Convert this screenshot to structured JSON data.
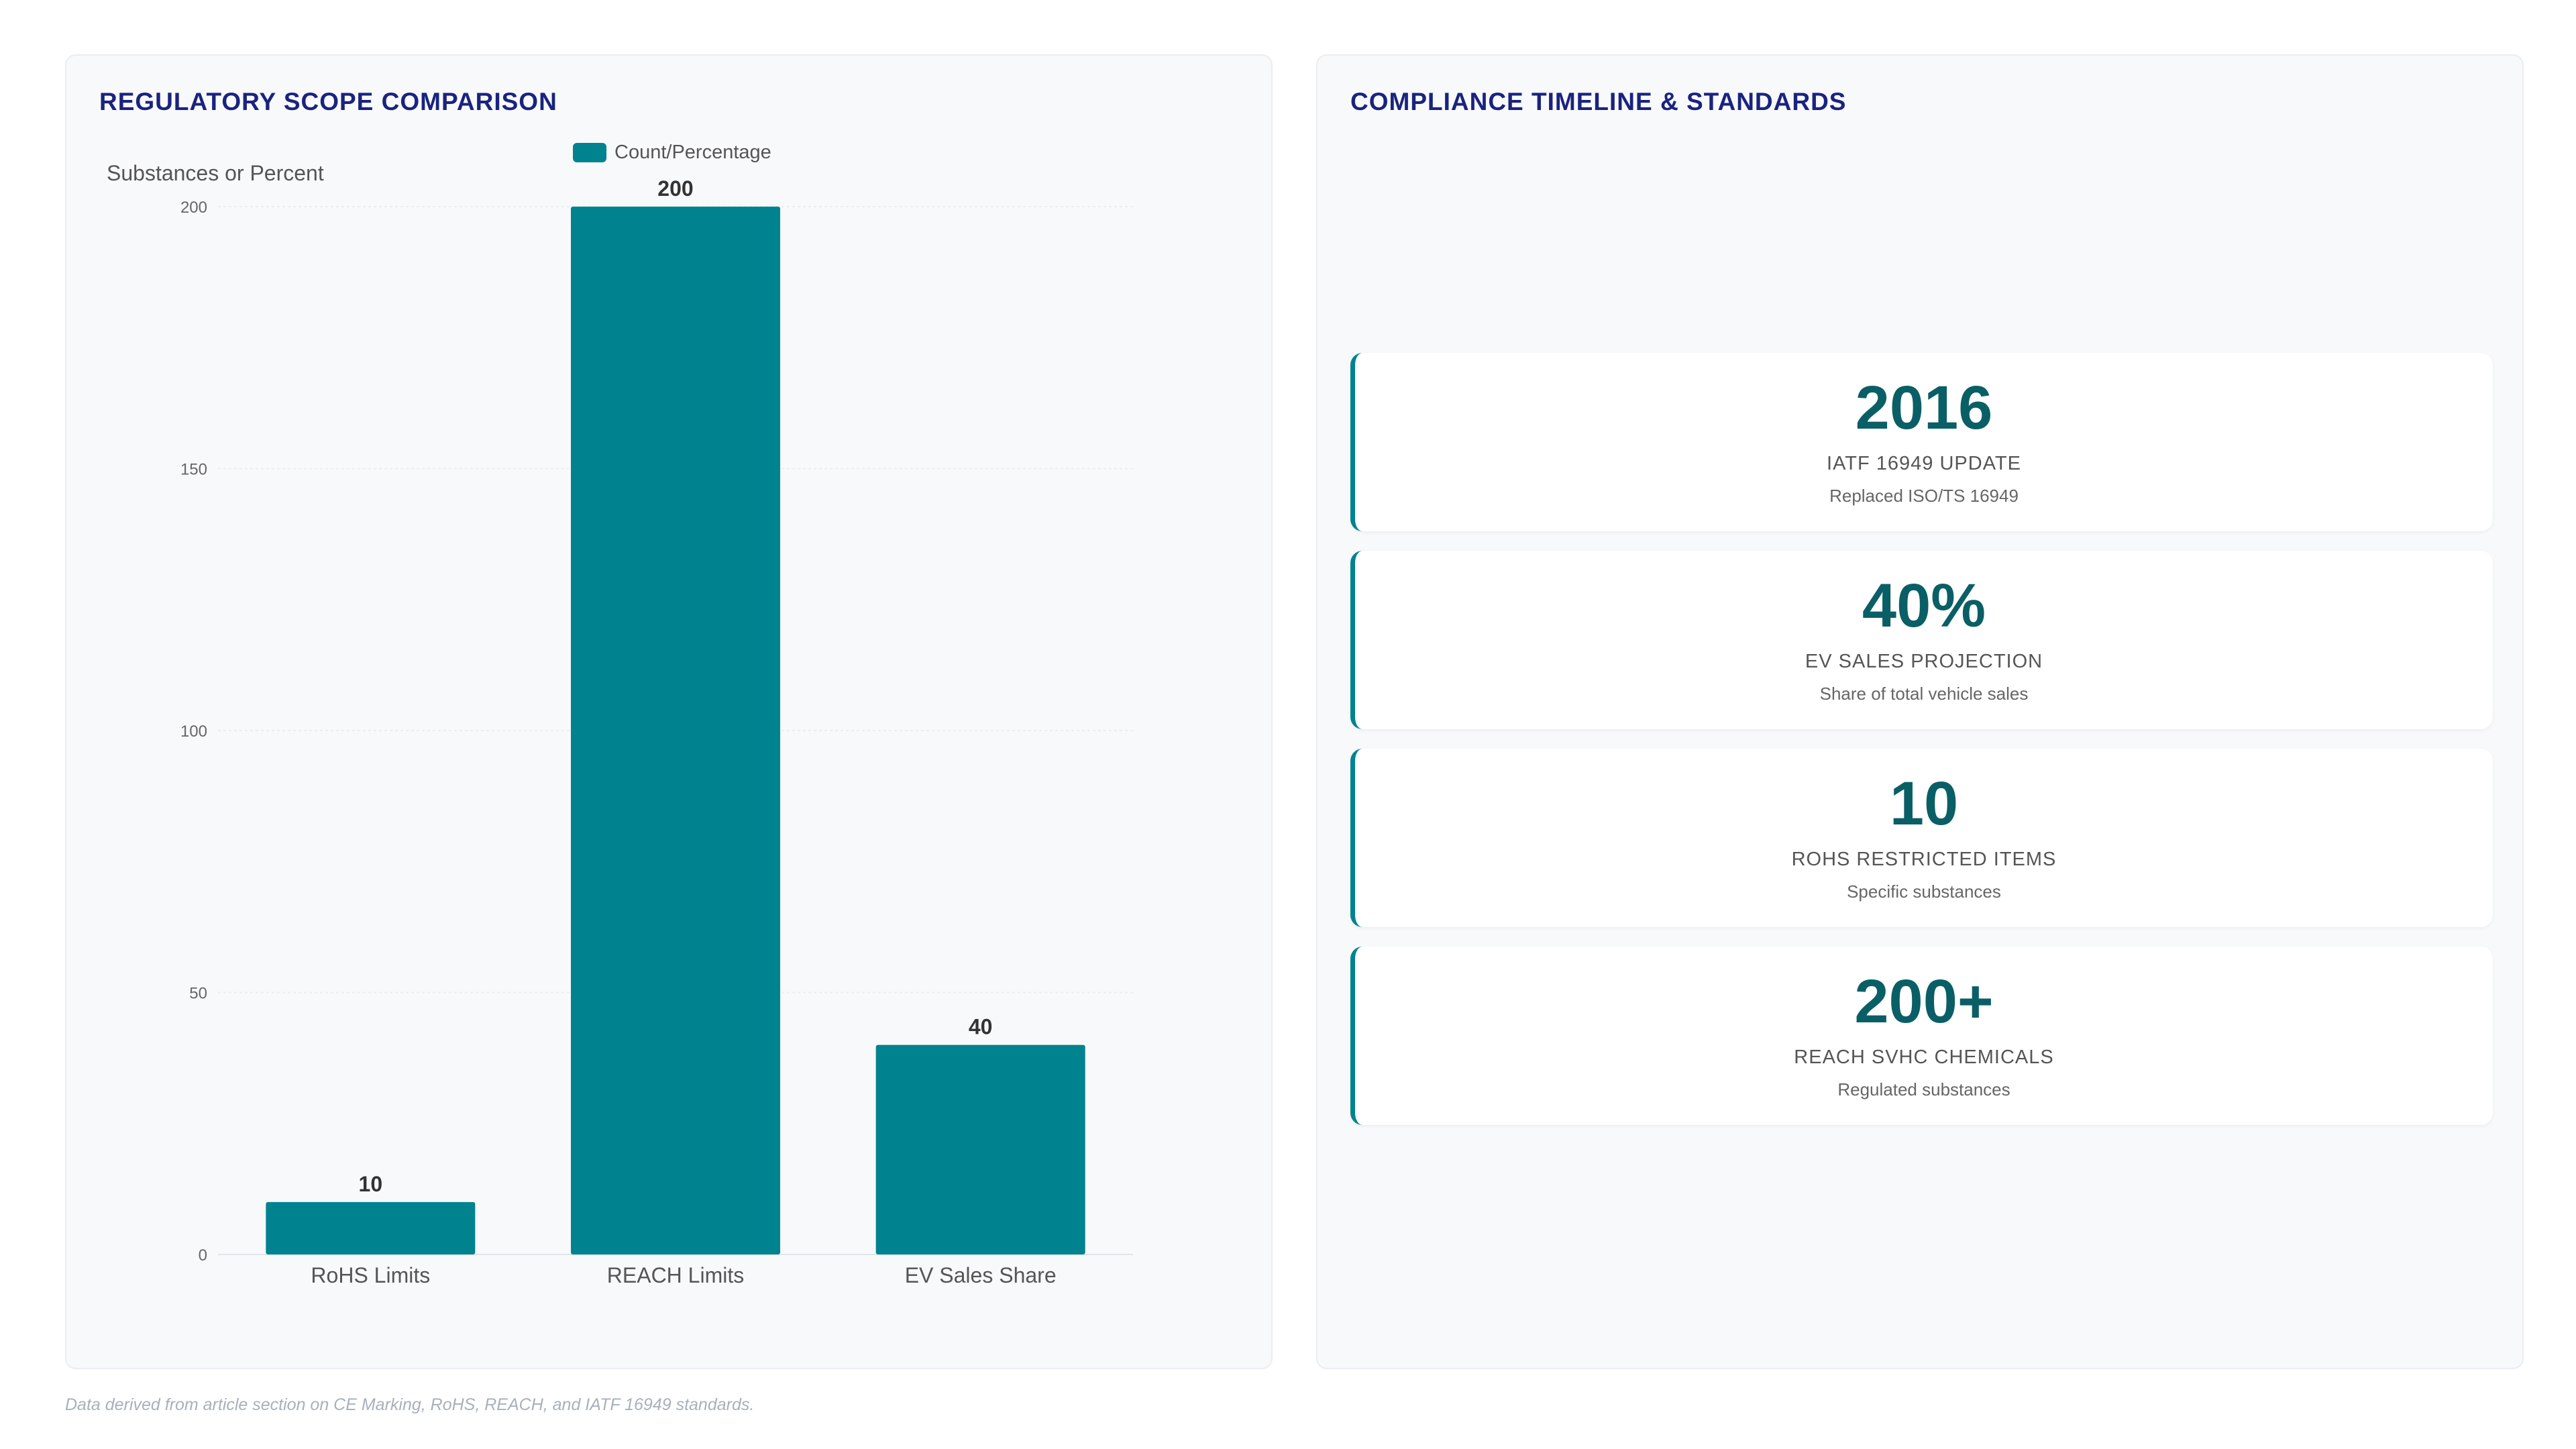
{
  "left_panel": {
    "title": "REGULATORY SCOPE COMPARISON"
  },
  "right_panel": {
    "title": "COMPLIANCE TIMELINE & STANDARDS",
    "cards": [
      {
        "value": "2016",
        "label": "IATF 16949 UPDATE",
        "sub": "Replaced ISO/TS 16949"
      },
      {
        "value": "40%",
        "label": "EV SALES PROJECTION",
        "sub": "Share of total vehicle sales"
      },
      {
        "value": "10",
        "label": "ROHS RESTRICTED ITEMS",
        "sub": "Specific substances"
      },
      {
        "value": "200+",
        "label": "REACH SVHC CHEMICALS",
        "sub": "Regulated substances"
      }
    ]
  },
  "chart_data": {
    "type": "bar",
    "categories": [
      "RoHS Limits",
      "REACH Limits",
      "EV Sales Share"
    ],
    "series": [
      {
        "name": "Count/Percentage",
        "values": [
          10,
          200,
          40
        ],
        "color": "#00838f"
      }
    ],
    "ylabel": "Substances or Percent",
    "xlabel": "",
    "ylim": [
      0,
      200
    ],
    "yticks": [
      0,
      50,
      100,
      150,
      200
    ],
    "data_labels": [
      "10",
      "200",
      "40"
    ],
    "legend_position": "top-center",
    "grid": true
  },
  "footnote": "Data derived from article section on CE Marking, RoHS, REACH, and IATF 16949 standards."
}
